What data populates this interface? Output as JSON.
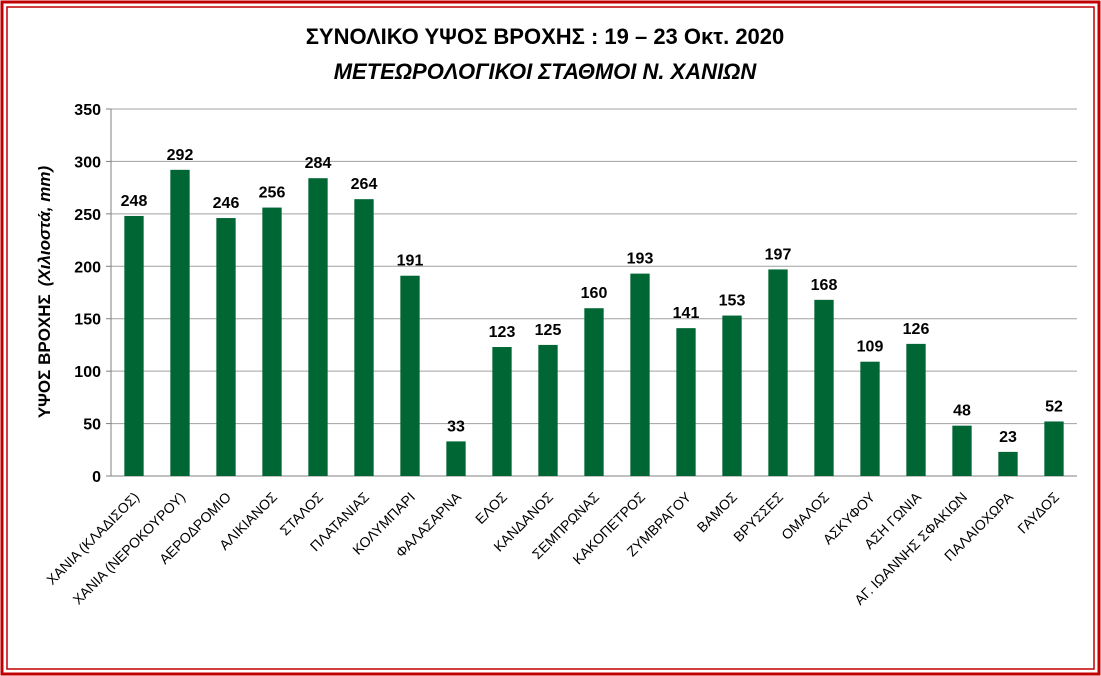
{
  "chart_data": {
    "type": "bar",
    "title": "ΣΥΝΟΛΙΚΟ ΥΨΟΣ ΒΡΟΧΗΣ  :  19 – 23 Οκτ. 2020",
    "subtitle": "ΜΕΤΕΩΡΟΛΟΓΙΚΟΙ ΣΤΑΘΜΟΙ  Ν. ΧΑΝΙΩΝ",
    "ylabel": "ΥΨΟΣ ΒΡΟΧΗΣ",
    "ylabel_unit": "(Χιλιοστά, mm)",
    "categories": [
      "ΧΑΝΙΑ (ΚΛΑΔΙΣΟΣ)",
      "ΧΑΝΙΑ (ΝΕΡΟΚΟΥΡΟΥ)",
      "ΑΕΡΟΔΡΟΜΙΟ",
      "ΑΛΙΚΙΑΝΟΣ",
      "ΣΤΑΛΟΣ",
      "ΠΛΑΤΑΝΙΑΣ",
      "ΚΟΛΥΜΠΑΡΙ",
      "ΦΑΛΑΣΑΡΝΑ",
      "ΕΛΟΣ",
      "ΚΑΝΔΑΝΟΣ",
      "ΣΕΜΠΡΩΝΑΣ",
      "ΚΑΚΟΠΕΤΡΟΣ",
      "ΖΥΜΒΡΑΓΟΥ",
      "ΒΑΜΟΣ",
      "ΒΡΥΣΣΕΣ",
      "ΟΜΑΛΟΣ",
      "ΑΣΚΥΦΟΥ",
      "ΑΣΗ ΓΩΝΙΑ",
      "ΑΓ. ΙΩΑΝΝΗΣ ΣΦΑΚΙΩΝ",
      "ΠΑΛΑΙΟΧΩΡΑ",
      "ΓΑΥΔΟΣ"
    ],
    "values": [
      248,
      292,
      246,
      256,
      284,
      264,
      191,
      33,
      123,
      125,
      160,
      193,
      141,
      153,
      197,
      168,
      109,
      126,
      48,
      23,
      52
    ],
    "color": "#006633",
    "ylim": [
      0,
      350
    ],
    "yticks": [
      0,
      50,
      100,
      150,
      200,
      250,
      300,
      350
    ],
    "grid": true
  }
}
